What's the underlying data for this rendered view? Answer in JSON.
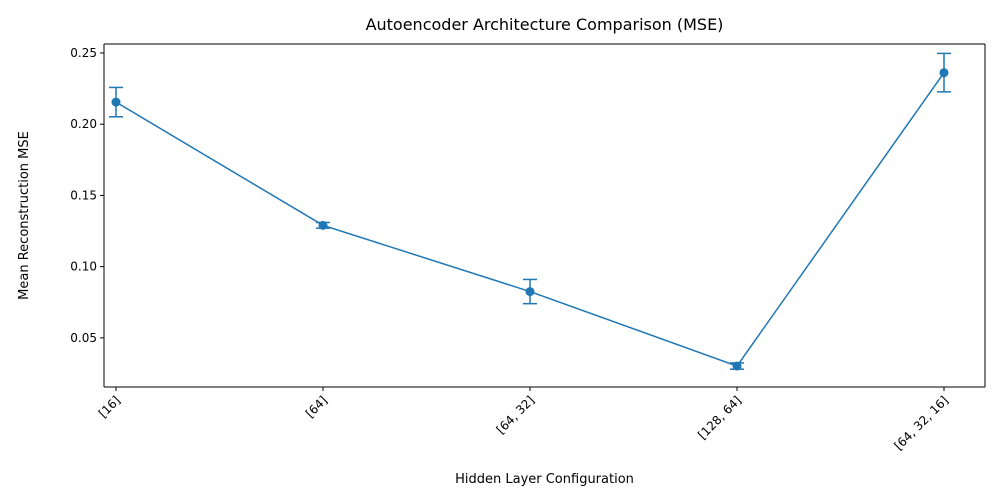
{
  "chart_data": {
    "type": "line",
    "title": "Autoencoder Architecture Comparison (MSE)",
    "xlabel": "Hidden Layer Configuration",
    "ylabel": "Mean Reconstruction MSE",
    "categories": [
      "[16]",
      "[64]",
      "[64, 32]",
      "[128, 64]",
      "[64, 32, 16]"
    ],
    "series": [
      {
        "values": [
          0.2155,
          0.129,
          0.0825,
          0.0302,
          0.2362
        ],
        "errors": [
          0.0103,
          0.002,
          0.0085,
          0.0022,
          0.0135
        ],
        "color": "#1f77b4"
      }
    ],
    "ylim": [
      0.0155,
      0.2563
    ],
    "yticks": [
      0.05,
      0.1,
      0.15,
      0.2,
      0.25
    ],
    "ytick_labels": [
      "0.05",
      "0.10",
      "0.15",
      "0.20",
      "0.25"
    ],
    "grid": false,
    "x_tick_rotation_deg": 45
  }
}
